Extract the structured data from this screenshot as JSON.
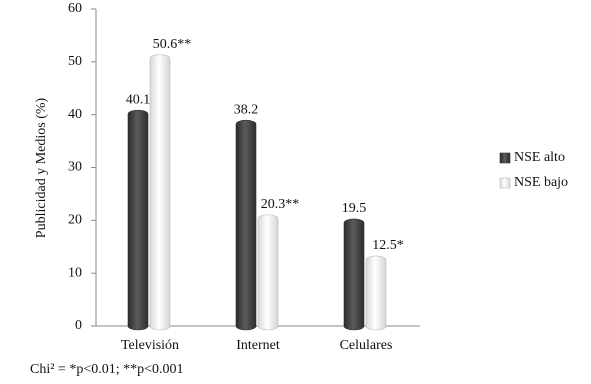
{
  "chart_data": {
    "type": "bar",
    "y_label": "Publicidad y Medios (%)",
    "categories": [
      "Televisión",
      "Internet",
      "Celulares"
    ],
    "series": [
      {
        "name": "NSE alto",
        "color": "#444444",
        "values": [
          40.1,
          38.2,
          19.5
        ]
      },
      {
        "name": "NSE bajo",
        "color": "#f4f4f4",
        "values": [
          50.6,
          20.3,
          12.5
        ],
        "value_labels": [
          "50.6**",
          "20.3**",
          "12.5*"
        ]
      }
    ],
    "ylim": [
      0,
      60
    ],
    "yticks": [
      0,
      10,
      20,
      30,
      40,
      50,
      60
    ],
    "grid": false,
    "legend": "right",
    "note": "Chi² = *p<0.01; **p<0.001"
  }
}
